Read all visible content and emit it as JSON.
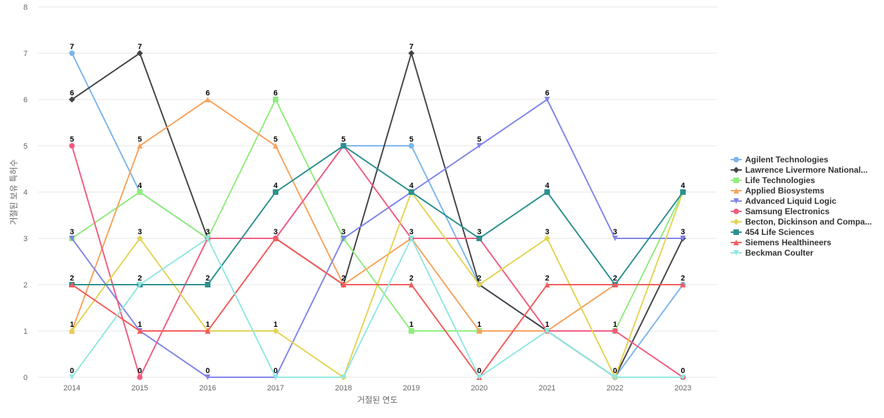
{
  "chart_data": {
    "type": "line",
    "xlabel": "거절된 연도",
    "ylabel": "거절된 보유 특허수",
    "ylim": [
      0,
      8
    ],
    "yticks": [
      0,
      1,
      2,
      3,
      4,
      5,
      6,
      7,
      8
    ],
    "categories": [
      "2014",
      "2015",
      "2016",
      "2017",
      "2018",
      "2019",
      "2020",
      "2021",
      "2022",
      "2023"
    ],
    "grid": "horizontal",
    "legend_position": "right",
    "series": [
      {
        "name": "Agilent Technologies",
        "color": "#7cb5ec",
        "marker": "circle",
        "values": [
          7,
          4,
          3,
          3,
          5,
          5,
          2,
          1,
          0,
          2
        ]
      },
      {
        "name": "Lawrence Livermore National...",
        "color": "#434348",
        "marker": "diamond",
        "values": [
          6,
          7,
          3,
          3,
          2,
          7,
          2,
          1,
          0,
          3
        ]
      },
      {
        "name": "Life Technologies",
        "color": "#90ed7d",
        "marker": "square",
        "values": [
          3,
          4,
          3,
          6,
          3,
          1,
          1,
          1,
          1,
          4
        ]
      },
      {
        "name": "Applied Biosystems",
        "color": "#f7a35c",
        "marker": "triangle",
        "values": [
          1,
          5,
          6,
          5,
          2,
          3,
          1,
          1,
          2,
          2
        ]
      },
      {
        "name": "Advanced Liquid Logic",
        "color": "#8085e9",
        "marker": "triangle-down",
        "values": [
          3,
          1,
          0,
          0,
          3,
          4,
          5,
          6,
          3,
          3
        ]
      },
      {
        "name": "Samsung Electronics",
        "color": "#f15c80",
        "marker": "circle",
        "values": [
          5,
          0,
          3,
          3,
          5,
          3,
          3,
          1,
          1,
          0
        ]
      },
      {
        "name": "Becton, Dickinson and Compa...",
        "color": "#e4d354",
        "marker": "diamond",
        "values": [
          1,
          3,
          1,
          1,
          0,
          4,
          2,
          3,
          0,
          4
        ]
      },
      {
        "name": "454 Life Sciences",
        "color": "#2b908f",
        "marker": "square",
        "values": [
          2,
          2,
          2,
          4,
          5,
          4,
          3,
          4,
          2,
          4
        ]
      },
      {
        "name": "Siemens Healthineers",
        "color": "#f45b5b",
        "marker": "triangle",
        "values": [
          2,
          1,
          1,
          3,
          2,
          2,
          0,
          2,
          2,
          2
        ]
      },
      {
        "name": "Beckman Coulter",
        "color": "#91e8e1",
        "marker": "triangle-down",
        "values": [
          0,
          2,
          3,
          0,
          0,
          3,
          0,
          1,
          0,
          0
        ]
      }
    ],
    "data_labels": [
      {
        "category": "2014",
        "value": 7,
        "text": "7"
      },
      {
        "category": "2014",
        "value": 6,
        "text": "6"
      },
      {
        "category": "2014",
        "value": 5,
        "text": "5"
      },
      {
        "category": "2014",
        "value": 3,
        "text": "3"
      },
      {
        "category": "2014",
        "value": 2,
        "text": "2"
      },
      {
        "category": "2014",
        "value": 1,
        "text": "1"
      },
      {
        "category": "2014",
        "value": 0,
        "text": "0"
      },
      {
        "category": "2015",
        "value": 7,
        "text": "7"
      },
      {
        "category": "2015",
        "value": 5,
        "text": "5"
      },
      {
        "category": "2015",
        "value": 4,
        "text": "4"
      },
      {
        "category": "2015",
        "value": 3,
        "text": "3"
      },
      {
        "category": "2015",
        "value": 2,
        "text": "2"
      },
      {
        "category": "2015",
        "value": 1,
        "text": "1"
      },
      {
        "category": "2015",
        "value": 0,
        "text": "0"
      },
      {
        "category": "2016",
        "value": 6,
        "text": "6"
      },
      {
        "category": "2016",
        "value": 3,
        "text": "3"
      },
      {
        "category": "2016",
        "value": 2,
        "text": "2"
      },
      {
        "category": "2016",
        "value": 1,
        "text": "1"
      },
      {
        "category": "2016",
        "value": 0,
        "text": "0"
      },
      {
        "category": "2017",
        "value": 6,
        "text": "6"
      },
      {
        "category": "2017",
        "value": 5,
        "text": "5"
      },
      {
        "category": "2017",
        "value": 4,
        "text": "4"
      },
      {
        "category": "2017",
        "value": 3,
        "text": "3"
      },
      {
        "category": "2017",
        "value": 1,
        "text": "1"
      },
      {
        "category": "2017",
        "value": 0,
        "text": "0"
      },
      {
        "category": "2018",
        "value": 5,
        "text": "5"
      },
      {
        "category": "2018",
        "value": 3,
        "text": "3"
      },
      {
        "category": "2018",
        "value": 2,
        "text": "2"
      },
      {
        "category": "2019",
        "value": 7,
        "text": "7"
      },
      {
        "category": "2019",
        "value": 5,
        "text": "5"
      },
      {
        "category": "2019",
        "value": 4,
        "text": "4"
      },
      {
        "category": "2019",
        "value": 3,
        "text": "3"
      },
      {
        "category": "2019",
        "value": 2,
        "text": "2"
      },
      {
        "category": "2019",
        "value": 1,
        "text": "1"
      },
      {
        "category": "2020",
        "value": 5,
        "text": "5"
      },
      {
        "category": "2020",
        "value": 3,
        "text": "3"
      },
      {
        "category": "2020",
        "value": 2,
        "text": "2"
      },
      {
        "category": "2020",
        "value": 1,
        "text": "1"
      },
      {
        "category": "2020",
        "value": 0,
        "text": "0"
      },
      {
        "category": "2021",
        "value": 6,
        "text": "6"
      },
      {
        "category": "2021",
        "value": 4,
        "text": "4"
      },
      {
        "category": "2021",
        "value": 3,
        "text": "3"
      },
      {
        "category": "2021",
        "value": 2,
        "text": "2"
      },
      {
        "category": "2021",
        "value": 1,
        "text": "1"
      },
      {
        "category": "2022",
        "value": 3,
        "text": "3"
      },
      {
        "category": "2022",
        "value": 2,
        "text": "2"
      },
      {
        "category": "2022",
        "value": 1,
        "text": "1"
      },
      {
        "category": "2022",
        "value": 0,
        "text": "0"
      },
      {
        "category": "2023",
        "value": 4,
        "text": "4"
      },
      {
        "category": "2023",
        "value": 3,
        "text": "3"
      },
      {
        "category": "2023",
        "value": 2,
        "text": "2"
      },
      {
        "category": "2023",
        "value": 0,
        "text": "0"
      }
    ]
  }
}
